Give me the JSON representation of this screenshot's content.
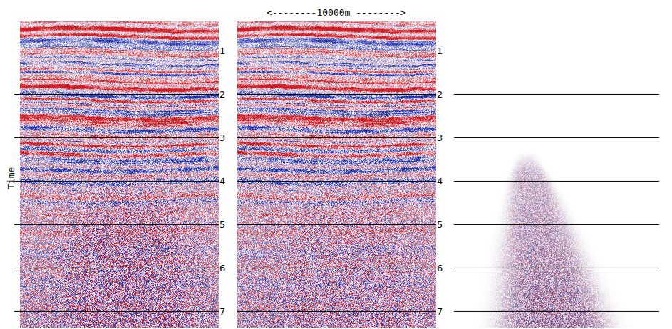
{
  "chart_data": {
    "type": "seismic_section",
    "ylabel": "Time",
    "scale_label": "<--------10000m -------->",
    "ylim": [
      7.37,
      0.32
    ],
    "yticks": [
      1,
      2,
      3,
      4,
      5,
      6,
      7
    ],
    "lines": [
      2,
      3,
      4,
      5,
      6,
      7
    ]
  }
}
